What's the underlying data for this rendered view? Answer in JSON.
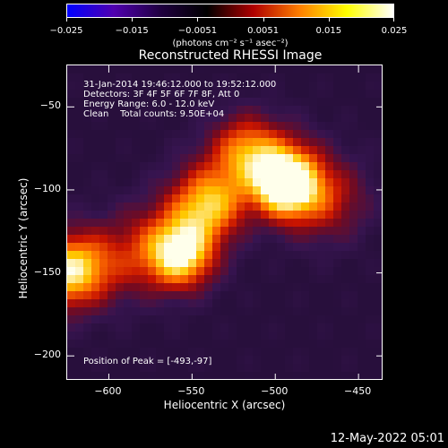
{
  "colorbar": {
    "tick_labels": [
      "−0.025",
      "−0.015",
      "−0.0051",
      "0.0051",
      "0.015",
      "0.025"
    ],
    "units": "(photons cm⁻² s⁻¹ asec⁻²)",
    "colors": [
      "#0000ff",
      "#5000b0",
      "#200040",
      "#000000",
      "#b00000",
      "#ff8000",
      "#ffff00",
      "#ffffff"
    ]
  },
  "image": {
    "title": "Reconstructed RHESSI Image",
    "time_range": "31-Jan-2014 19:46:12.000 to 19:52:12.000",
    "detectors": "Detectors: 3F 4F 5F 6F 7F 8F, Att 0",
    "energy_range": "Energy Range: 6.0 - 12.0 keV",
    "algorithm_counts": "Clean    Total counts: 9.50E+04",
    "peak_position": "Position of Peak = [-493,-97]"
  },
  "chart_data": {
    "type": "heatmap",
    "title": "Reconstructed RHESSI Image",
    "xlabel": "Heliocentric X (arcsec)",
    "ylabel": "Heliocentric Y (arcsec)",
    "xlim": [
      -625,
      -435
    ],
    "ylim": [
      -215,
      -25
    ],
    "x_ticks": [
      -600,
      -550,
      -500,
      -450
    ],
    "y_ticks": [
      -50,
      -100,
      -150,
      -200
    ],
    "x_tick_labels": [
      "−600",
      "−550",
      "−500",
      "−450"
    ],
    "y_tick_labels": [
      "−50",
      "−100",
      "−150",
      "−200"
    ],
    "peak": [
      -493,
      -97
    ],
    "sources": [
      {
        "x": -493,
        "y": -97,
        "intensity": 1.0
      },
      {
        "x": -557,
        "y": -140,
        "intensity": 0.8
      },
      {
        "x": -622,
        "y": -148,
        "intensity": 0.55
      },
      {
        "x": -540,
        "y": -110,
        "intensity": 0.45
      },
      {
        "x": -515,
        "y": -75,
        "intensity": 0.4
      }
    ]
  },
  "footer": {
    "timestamp": "12-May-2022 05:01"
  }
}
